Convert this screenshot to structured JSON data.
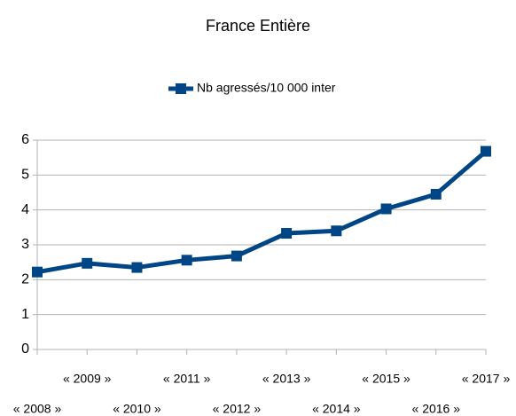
{
  "chart_data": {
    "type": "line",
    "title": "France Entière",
    "categories": [
      "« 2008 »",
      "« 2009 »",
      "« 2010 »",
      "« 2011 »",
      "« 2012 »",
      "« 2013 »",
      "« 2014 »",
      "« 2015 »",
      "« 2016 »",
      "« 2017 »"
    ],
    "series": [
      {
        "name": "Nb agressés/10 000 inter",
        "color": "#004586",
        "values": [
          2.22,
          2.47,
          2.35,
          2.56,
          2.68,
          3.33,
          3.4,
          4.03,
          4.45,
          5.68
        ]
      }
    ],
    "ylim": [
      0,
      6
    ],
    "yticks": [
      0,
      1,
      2,
      3,
      4,
      5,
      6
    ],
    "grid": true,
    "legend": "top"
  }
}
